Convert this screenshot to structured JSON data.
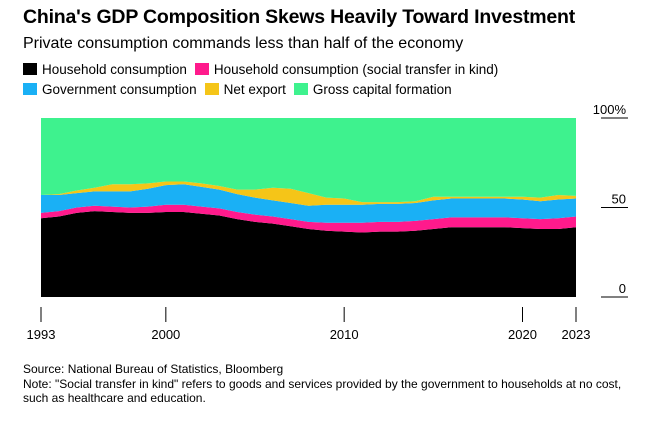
{
  "title": "China's GDP Composition Skews Heavily Toward Investment",
  "subtitle": "Private consumption commands less than half of the economy",
  "legend": [
    {
      "label": "Household consumption",
      "color": "#000000"
    },
    {
      "label": "Household consumption (social transfer in kind)",
      "color": "#ff1a8c"
    },
    {
      "label": "Government consumption",
      "color": "#1ab0f5"
    },
    {
      "label": "Net export",
      "color": "#f5c518"
    },
    {
      "label": "Gross capital formation",
      "color": "#3ef28e"
    }
  ],
  "footer": {
    "source": "Source: National Bureau of Statistics, Bloomberg",
    "note": "Note: \"Social transfer in kind\" refers to goods and services provided by the government to households at no cost, such as healthcare and education."
  },
  "chart_data": {
    "type": "area",
    "stacked": true,
    "x": [
      1993,
      1994,
      1995,
      1996,
      1997,
      1998,
      1999,
      2000,
      2001,
      2002,
      2003,
      2004,
      2005,
      2006,
      2007,
      2008,
      2009,
      2010,
      2011,
      2012,
      2013,
      2014,
      2015,
      2016,
      2017,
      2018,
      2019,
      2020,
      2021,
      2022,
      2023
    ],
    "ylim": [
      0,
      100
    ],
    "y_ticks": [
      0,
      50,
      100
    ],
    "y_tick_labels": [
      "0",
      "50",
      "100%"
    ],
    "x_ticks": [
      1993,
      2000,
      2010,
      2020,
      2023
    ],
    "grid": false,
    "series": [
      {
        "name": "Household consumption",
        "color": "#000000",
        "values": [
          44,
          45,
          47,
          48,
          47.5,
          47,
          47,
          47.5,
          47.5,
          46.5,
          45.5,
          43.5,
          42,
          41,
          39.5,
          38,
          37,
          36.5,
          36,
          36.5,
          36.5,
          37,
          38,
          39,
          39,
          39,
          39,
          38.5,
          38,
          38,
          39
        ]
      },
      {
        "name": "Household consumption (social transfer in kind)",
        "color": "#ff1a8c",
        "values": [
          3,
          3,
          3,
          3,
          3,
          3,
          3.5,
          4,
          4,
          4,
          4,
          4,
          4,
          4,
          4,
          4,
          4.5,
          5,
          5.5,
          5.5,
          5.5,
          5.5,
          5.5,
          5.5,
          5.5,
          5.5,
          5.5,
          5.5,
          5.5,
          6,
          6
        ]
      },
      {
        "name": "Government consumption",
        "color": "#1ab0f5",
        "values": [
          10,
          9,
          8,
          8,
          8.5,
          9,
          10,
          11,
          11.5,
          11,
          10.5,
          10,
          9.5,
          9,
          9,
          9,
          10,
          10,
          10,
          10,
          10,
          10,
          10.5,
          10.5,
          10.5,
          10.5,
          10.5,
          10.5,
          10,
          10.5,
          10
        ]
      },
      {
        "name": "Net export",
        "color": "#f5c518",
        "values": [
          0,
          0.5,
          1.5,
          2,
          4,
          4,
          3,
          2,
          1.5,
          2,
          2,
          2.5,
          4.5,
          7,
          8,
          7,
          4,
          3.5,
          1.5,
          1,
          1,
          1,
          2,
          1,
          1,
          1,
          1,
          1.5,
          2,
          2.5,
          1.5
        ]
      },
      {
        "name": "Gross capital formation",
        "color": "#3ef28e",
        "values": [
          43,
          42.5,
          40.5,
          39,
          37,
          37,
          36.5,
          35.5,
          35.5,
          36.5,
          38,
          40,
          40,
          39,
          39.5,
          42,
          44.5,
          45,
          47,
          47,
          47,
          46.5,
          44,
          44,
          44,
          44,
          44,
          44,
          44.5,
          43,
          43.5
        ]
      }
    ]
  }
}
